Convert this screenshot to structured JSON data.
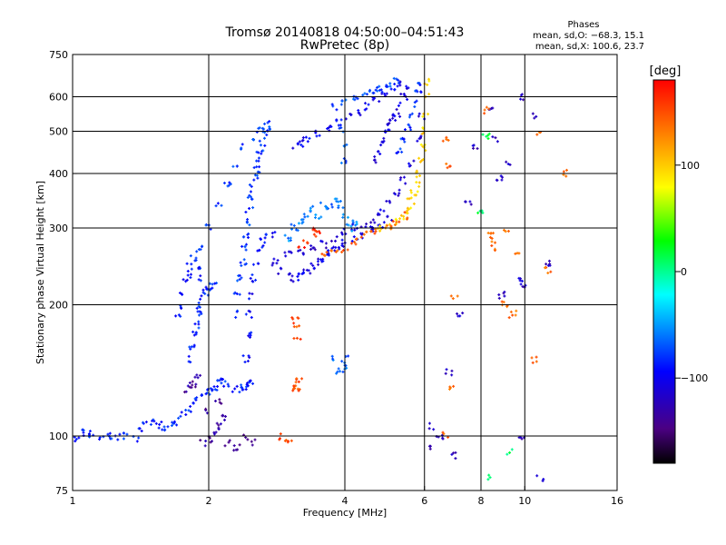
{
  "chart_data": {
    "type": "scatter",
    "title": "Tromsø 20140818 04:50:00–04:51:43",
    "subtitle": "RwPretec (8p)",
    "phase_stats": {
      "heading": "Phases",
      "line_o": "mean, sd,O: −68.3, 15.1",
      "line_x": "mean, sd,X: 100.6, 23.7"
    },
    "xlabel": "Frequency [MHz]",
    "ylabel": "Stationary phase Virtual Height [km]",
    "x_scale": "log",
    "y_scale": "log",
    "xlim": [
      1,
      16
    ],
    "ylim": [
      75,
      750
    ],
    "x_ticks": [
      1,
      2,
      4,
      6,
      8,
      10,
      16
    ],
    "x_tick_labels": [
      "1",
      "2",
      "4",
      "6",
      "8",
      "10",
      "16"
    ],
    "y_ticks": [
      75,
      100,
      200,
      300,
      400,
      500,
      600,
      750
    ],
    "y_tick_labels": [
      "75",
      "100",
      "200",
      "300",
      "400",
      "500",
      "600",
      "750"
    ],
    "grid_x": [
      2,
      4,
      6,
      8,
      10
    ],
    "grid_y": [
      100,
      200,
      300,
      400,
      500,
      600
    ],
    "colorbar": {
      "label": "[deg]",
      "min": -180,
      "max": 180,
      "ticks": [
        100,
        0,
        -100
      ],
      "tick_labels": [
        "100",
        "0",
        "−100"
      ]
    },
    "colors": {
      "grid": "#000000",
      "background": "#ffffff"
    },
    "traces": [
      {
        "name": "low-height-trace",
        "phase": -85,
        "points": [
          [
            1.0,
            100
          ],
          [
            1.03,
            99
          ],
          [
            1.06,
            102
          ],
          [
            1.1,
            101
          ],
          [
            1.15,
            99
          ],
          [
            1.2,
            100
          ],
          [
            1.25,
            99
          ],
          [
            1.3,
            100
          ],
          [
            1.38,
            98
          ],
          [
            1.42,
            104
          ],
          [
            1.45,
            106
          ],
          [
            1.5,
            108
          ],
          [
            1.55,
            106
          ],
          [
            1.6,
            105
          ],
          [
            1.65,
            107
          ],
          [
            1.7,
            108
          ],
          [
            1.75,
            112
          ],
          [
            1.8,
            114
          ],
          [
            1.85,
            118
          ],
          [
            1.9,
            122
          ],
          [
            1.95,
            125
          ],
          [
            2.0,
            126
          ],
          [
            2.05,
            128
          ],
          [
            2.1,
            132
          ],
          [
            2.15,
            134
          ],
          [
            2.2,
            130
          ],
          [
            2.3,
            128
          ],
          [
            2.4,
            130
          ],
          [
            2.5,
            132
          ]
        ]
      },
      {
        "name": "rising-column-1",
        "phase": -85,
        "points": [
          [
            1.82,
            150
          ],
          [
            1.84,
            160
          ],
          [
            1.86,
            170
          ],
          [
            1.88,
            180
          ],
          [
            1.9,
            190
          ],
          [
            1.92,
            200
          ],
          [
            1.95,
            208
          ],
          [
            1.98,
            214
          ],
          [
            2.0,
            218
          ],
          [
            2.05,
            222
          ]
        ]
      },
      {
        "name": "rising-column-2",
        "phase": -90,
        "points": [
          [
            1.7,
            190
          ],
          [
            1.72,
            200
          ],
          [
            1.75,
            210
          ],
          [
            1.78,
            225
          ],
          [
            1.8,
            235
          ],
          [
            1.82,
            245
          ],
          [
            1.86,
            255
          ],
          [
            1.88,
            240
          ],
          [
            1.9,
            230
          ]
        ]
      },
      {
        "name": "main-spur",
        "phase": -80,
        "points": [
          [
            2.3,
            190
          ],
          [
            2.32,
            210
          ],
          [
            2.35,
            230
          ],
          [
            2.38,
            250
          ],
          [
            2.4,
            270
          ],
          [
            2.42,
            290
          ],
          [
            2.44,
            310
          ],
          [
            2.46,
            330
          ],
          [
            2.48,
            350
          ],
          [
            2.5,
            370
          ],
          [
            2.52,
            390
          ],
          [
            2.55,
            410
          ],
          [
            2.58,
            430
          ],
          [
            2.6,
            450
          ],
          [
            2.62,
            470
          ],
          [
            2.65,
            490
          ],
          [
            2.7,
            510
          ],
          [
            2.75,
            520
          ]
        ]
      },
      {
        "name": "spur-lower",
        "phase": -95,
        "points": [
          [
            2.4,
            130
          ],
          [
            2.42,
            150
          ],
          [
            2.44,
            170
          ],
          [
            2.46,
            190
          ],
          [
            2.48,
            210
          ],
          [
            2.5,
            230
          ],
          [
            2.55,
            250
          ],
          [
            2.6,
            270
          ],
          [
            2.65,
            280
          ],
          [
            2.7,
            285
          ],
          [
            2.8,
            290
          ]
        ]
      },
      {
        "name": "left-arm",
        "phase": -80,
        "points": [
          [
            1.9,
            270
          ],
          [
            2.0,
            300
          ],
          [
            2.1,
            340
          ],
          [
            2.2,
            380
          ],
          [
            2.3,
            420
          ],
          [
            2.4,
            460
          ],
          [
            2.5,
            480
          ],
          [
            2.6,
            500
          ]
        ]
      },
      {
        "name": "bottom-curve",
        "phase": -105,
        "points": [
          [
            2.8,
            250
          ],
          [
            2.9,
            240
          ],
          [
            3.0,
            232
          ],
          [
            3.1,
            230
          ],
          [
            3.2,
            232
          ],
          [
            3.3,
            238
          ],
          [
            3.4,
            244
          ],
          [
            3.5,
            250
          ],
          [
            3.6,
            256
          ],
          [
            3.7,
            262
          ],
          [
            3.8,
            268
          ],
          [
            3.9,
            272
          ],
          [
            4.0,
            278
          ],
          [
            4.2,
            285
          ],
          [
            4.4,
            290
          ],
          [
            4.6,
            298
          ],
          [
            4.8,
            305
          ],
          [
            5.0,
            315
          ]
        ]
      },
      {
        "name": "bottom-curve-2",
        "phase": -115,
        "points": [
          [
            3.0,
            260
          ],
          [
            3.2,
            262
          ],
          [
            3.4,
            268
          ],
          [
            3.6,
            275
          ],
          [
            3.8,
            285
          ],
          [
            4.0,
            295
          ],
          [
            4.2,
            300
          ],
          [
            4.4,
            305
          ],
          [
            4.6,
            312
          ],
          [
            4.8,
            325
          ],
          [
            5.0,
            340
          ],
          [
            5.2,
            360
          ],
          [
            5.4,
            385
          ],
          [
            5.6,
            420
          ],
          [
            5.8,
            480
          ],
          [
            5.9,
            540
          ]
        ]
      },
      {
        "name": "top-trace",
        "phase": -100,
        "points": [
          [
            3.1,
            460
          ],
          [
            3.2,
            470
          ],
          [
            3.3,
            480
          ],
          [
            3.5,
            495
          ],
          [
            3.7,
            510
          ],
          [
            3.9,
            525
          ],
          [
            4.1,
            540
          ],
          [
            4.3,
            555
          ],
          [
            4.5,
            570
          ],
          [
            4.7,
            590
          ],
          [
            4.9,
            610
          ],
          [
            5.1,
            630
          ],
          [
            5.3,
            645
          ]
        ]
      },
      {
        "name": "top-upper",
        "phase": -75,
        "points": [
          [
            3.8,
            570
          ],
          [
            4.0,
            580
          ],
          [
            4.2,
            590
          ],
          [
            4.4,
            600
          ],
          [
            4.6,
            610
          ],
          [
            4.8,
            625
          ],
          [
            5.0,
            640
          ],
          [
            5.2,
            650
          ]
        ]
      },
      {
        "name": "inner-band",
        "phase": -110,
        "points": [
          [
            4.6,
            430
          ],
          [
            4.7,
            450
          ],
          [
            4.8,
            470
          ],
          [
            4.9,
            490
          ],
          [
            5.0,
            510
          ],
          [
            5.1,
            530
          ],
          [
            5.2,
            550
          ],
          [
            5.3,
            570
          ],
          [
            5.4,
            600
          ],
          [
            5.5,
            630
          ]
        ]
      },
      {
        "name": "inner-band-2",
        "phase": -85,
        "points": [
          [
            5.3,
            450
          ],
          [
            5.4,
            480
          ],
          [
            5.5,
            510
          ],
          [
            5.6,
            545
          ],
          [
            5.7,
            580
          ],
          [
            5.8,
            620
          ],
          [
            5.9,
            650
          ]
        ]
      },
      {
        "name": "x-mode-bottom",
        "phase": 95,
        "points": [
          [
            4.8,
            300
          ],
          [
            5.0,
            305
          ],
          [
            5.2,
            310
          ],
          [
            5.4,
            320
          ],
          [
            5.5,
            330
          ],
          [
            5.6,
            345
          ],
          [
            5.7,
            360
          ],
          [
            5.8,
            380
          ],
          [
            5.85,
            400
          ],
          [
            5.9,
            430
          ],
          [
            5.95,
            460
          ],
          [
            6.0,
            500
          ],
          [
            6.02,
            550
          ],
          [
            6.04,
            600
          ],
          [
            6.05,
            650
          ]
        ]
      },
      {
        "name": "x-mode-orange",
        "phase": 145,
        "points": [
          [
            3.6,
            262
          ],
          [
            3.8,
            266
          ],
          [
            4.0,
            268
          ],
          [
            4.2,
            280
          ],
          [
            4.4,
            290
          ],
          [
            4.6,
            295
          ],
          [
            5.0,
            300
          ],
          [
            5.2,
            305
          ],
          [
            5.4,
            320
          ]
        ]
      },
      {
        "name": "x-mode-red-left",
        "phase": 165,
        "points": [
          [
            3.2,
            270
          ],
          [
            3.3,
            280
          ],
          [
            3.4,
            295
          ],
          [
            3.5,
            290
          ]
        ]
      },
      {
        "name": "scatter-blue",
        "phase": -120,
        "points": [
          [
            6.1,
            95
          ],
          [
            6.2,
            105
          ],
          [
            6.5,
            100
          ],
          [
            6.8,
            140
          ],
          [
            7.2,
            190
          ],
          [
            7.5,
            340
          ],
          [
            7.8,
            460
          ],
          [
            8.4,
            560
          ],
          [
            8.6,
            480
          ],
          [
            8.8,
            390
          ],
          [
            9.2,
            420
          ],
          [
            9.8,
            600
          ],
          [
            9.8,
            100
          ],
          [
            9.9,
            220
          ],
          [
            10.5,
            540
          ],
          [
            11.2,
            250
          ],
          [
            10.8,
            80
          ],
          [
            9.7,
            230
          ],
          [
            8.9,
            210
          ],
          [
            7.0,
            90
          ]
        ]
      },
      {
        "name": "scatter-orange",
        "phase": 140,
        "points": [
          [
            6.7,
            480
          ],
          [
            6.8,
            420
          ],
          [
            7.0,
            210
          ],
          [
            6.9,
            130
          ],
          [
            6.7,
            100
          ],
          [
            8.2,
            560
          ],
          [
            8.4,
            290
          ],
          [
            8.6,
            280
          ],
          [
            9.0,
            200
          ],
          [
            9.4,
            190
          ],
          [
            9.6,
            260
          ],
          [
            10.5,
            150
          ],
          [
            10.8,
            500
          ],
          [
            11.2,
            240
          ],
          [
            12.4,
            400
          ],
          [
            9.1,
            300
          ],
          [
            8.5,
            270
          ]
        ]
      },
      {
        "name": "scatter-green",
        "phase": 10,
        "points": [
          [
            8.2,
            490
          ],
          [
            8.0,
            330
          ],
          [
            9.3,
            92
          ],
          [
            8.3,
            80
          ]
        ]
      },
      {
        "name": "low-isolated",
        "phase": -135,
        "points": [
          [
            1.95,
            96
          ],
          [
            2.0,
            98
          ],
          [
            2.05,
            102
          ],
          [
            2.1,
            105
          ],
          [
            2.15,
            110
          ],
          [
            2.2,
            96
          ],
          [
            2.3,
            94
          ],
          [
            2.4,
            100
          ],
          [
            2.5,
            97
          ],
          [
            2.0,
            115
          ],
          [
            2.1,
            120
          ],
          [
            1.8,
            128
          ],
          [
            1.85,
            132
          ],
          [
            1.9,
            138
          ]
        ]
      },
      {
        "name": "mid-orange-column",
        "phase": 150,
        "points": [
          [
            3.1,
            185
          ],
          [
            3.12,
            178
          ],
          [
            3.14,
            170
          ],
          [
            3.1,
            130
          ],
          [
            3.12,
            128
          ],
          [
            3.16,
            135
          ],
          [
            2.9,
            100
          ],
          [
            3.0,
            98
          ]
        ]
      },
      {
        "name": "right-of-spur",
        "phase": -60,
        "points": [
          [
            3.0,
            285
          ],
          [
            3.1,
            300
          ],
          [
            3.2,
            310
          ],
          [
            3.3,
            320
          ],
          [
            3.4,
            330
          ],
          [
            3.5,
            318
          ],
          [
            3.6,
            340
          ],
          [
            3.7,
            330
          ],
          [
            3.8,
            345
          ],
          [
            3.9,
            340
          ],
          [
            4.0,
            320
          ],
          [
            4.1,
            300
          ],
          [
            4.2,
            310
          ]
        ]
      },
      {
        "name": "near-4MHz-column",
        "phase": -70,
        "points": [
          [
            3.95,
            500
          ],
          [
            3.98,
            460
          ],
          [
            4.0,
            430
          ],
          [
            4.0,
            150
          ],
          [
            3.9,
            140
          ],
          [
            4.05,
            145
          ],
          [
            3.8,
            150
          ]
        ]
      }
    ]
  }
}
